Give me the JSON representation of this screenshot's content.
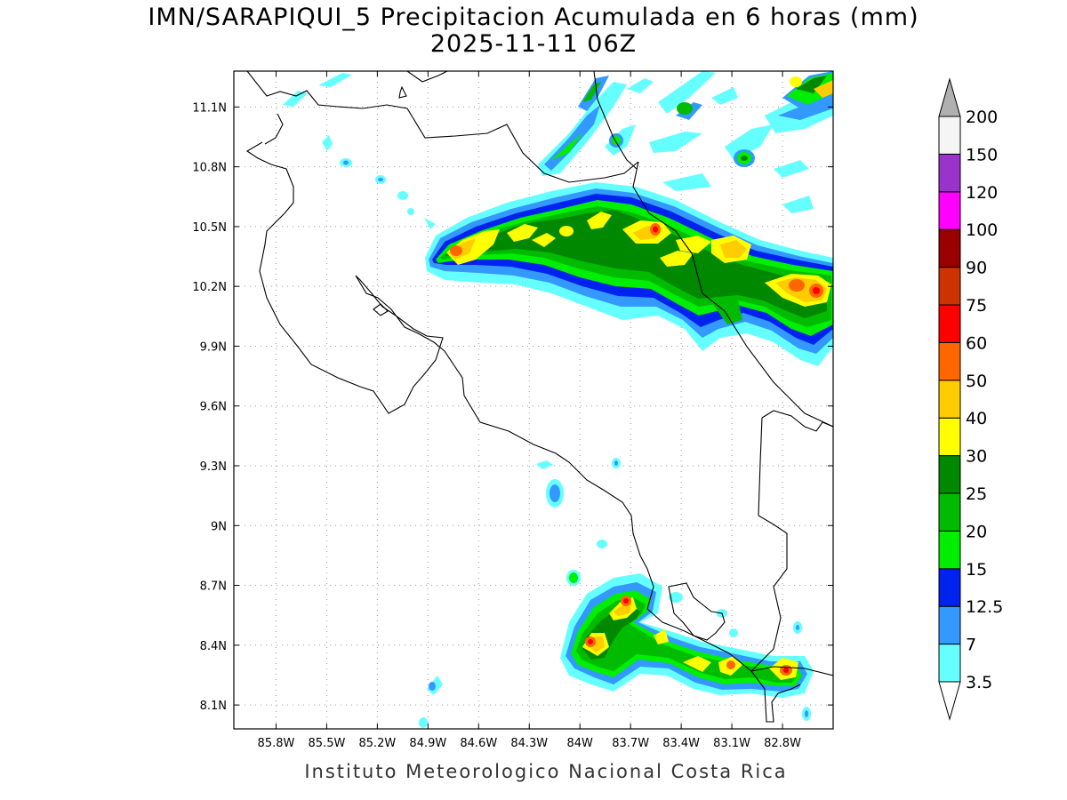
{
  "title_line1": "IMN/SARAPIQUI_5 Precipitacion Acumulada en 6 horas (mm)",
  "title_line2": "2025-11-11 06Z",
  "footer": "Instituto Meteorologico Nacional Costa Rica",
  "map": {
    "lon_range": [
      -86.05,
      -82.5
    ],
    "lat_range": [
      7.98,
      11.28
    ],
    "lon_ticks": [
      "85.8W",
      "85.5W",
      "85.2W",
      "84.9W",
      "84.6W",
      "84.3W",
      "84W",
      "83.7W",
      "83.4W",
      "83.1W",
      "82.8W"
    ],
    "lat_ticks": [
      "11.1N",
      "10.8N",
      "10.5N",
      "10.2N",
      "9.9N",
      "9.6N",
      "9.3N",
      "9N",
      "8.7N",
      "8.4N",
      "8.1N"
    ]
  },
  "colorbar": {
    "levels": [
      "3.5",
      "7",
      "12.5",
      "15",
      "20",
      "25",
      "30",
      "40",
      "50",
      "60",
      "75",
      "90",
      "100",
      "120",
      "150",
      "200"
    ],
    "colors": [
      "#66ffff",
      "#3399ff",
      "#0022ee",
      "#00ee00",
      "#00bb00",
      "#008800",
      "#ffff00",
      "#ffcc00",
      "#ff6600",
      "#ff0000",
      "#cc3300",
      "#990000",
      "#ff00ff",
      "#9933cc",
      "#f5f5f5"
    ],
    "overflow_color": "#b0b0b0",
    "underflow_color": "#ffffff"
  }
}
